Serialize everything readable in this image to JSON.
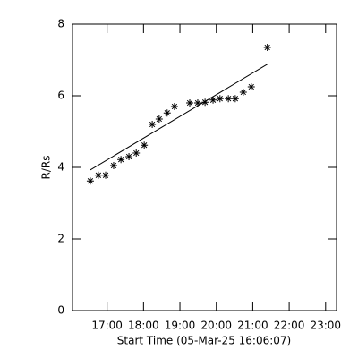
{
  "chart_data": {
    "type": "scatter",
    "x_label": "Start Time (05-Mar-25 16:06:07)",
    "y_label": "R/Rs",
    "xlim": [
      16.05,
      23.3
    ],
    "ylim": [
      0,
      8
    ],
    "xticks": [
      {
        "value": 17,
        "label": "17:00"
      },
      {
        "value": 18,
        "label": "18:00"
      },
      {
        "value": 19,
        "label": "19:00"
      },
      {
        "value": 20,
        "label": "20:00"
      },
      {
        "value": 21,
        "label": "21:00"
      },
      {
        "value": 22,
        "label": "22:00"
      },
      {
        "value": 23,
        "label": "23:00"
      }
    ],
    "yticks": [
      0,
      2,
      4,
      6,
      8
    ],
    "color": "#000000",
    "x": [
      16.54,
      16.76,
      16.96,
      17.18,
      17.38,
      17.6,
      17.8,
      18.02,
      18.24,
      18.43,
      18.65,
      18.85,
      19.27,
      19.49,
      19.69,
      19.91,
      20.1,
      20.33,
      20.52,
      20.74,
      20.96,
      21.4
    ],
    "values": [
      3.62,
      3.78,
      3.78,
      4.05,
      4.22,
      4.3,
      4.4,
      4.62,
      5.2,
      5.35,
      5.52,
      5.7,
      5.8,
      5.8,
      5.82,
      5.88,
      5.92,
      5.92,
      5.92,
      6.1,
      6.25,
      7.35
    ],
    "fit": {
      "x": [
        16.54,
        21.4
      ],
      "values": [
        3.93,
        6.88
      ]
    }
  }
}
